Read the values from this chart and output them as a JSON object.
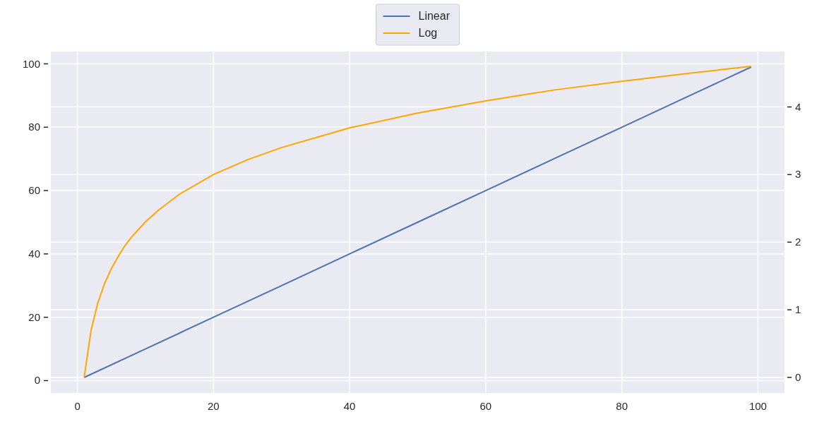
{
  "chart_data": {
    "type": "line",
    "xlim": [
      -3.9,
      103.9
    ],
    "xticks": [
      0,
      20,
      40,
      60,
      80,
      100
    ],
    "ylim": [
      -3.9,
      103.9
    ],
    "yticks": [
      0,
      20,
      40,
      60,
      80,
      100
    ],
    "y2lim": [
      -0.23,
      4.82
    ],
    "y2ticks": [
      0,
      1,
      2,
      3,
      4
    ],
    "grid": true,
    "legend": "top",
    "series": [
      {
        "name": "Linear",
        "color": "#4c72b0",
        "x": [
          1,
          10,
          20,
          30,
          40,
          50,
          60,
          70,
          80,
          90,
          99
        ],
        "values": [
          1,
          10,
          20,
          30,
          40,
          50,
          60,
          70,
          80,
          90,
          99
        ]
      },
      {
        "name": "Log",
        "color": "#ffa500",
        "axis": "y2",
        "x": [
          1,
          2,
          3,
          4,
          5,
          6,
          7,
          8,
          10,
          12,
          15,
          20,
          25,
          30,
          40,
          50,
          60,
          70,
          80,
          90,
          99
        ],
        "values": [
          0,
          0.69,
          1.1,
          1.39,
          1.61,
          1.79,
          1.95,
          2.08,
          2.3,
          2.48,
          2.71,
          3,
          3.22,
          3.4,
          3.69,
          3.91,
          4.09,
          4.25,
          4.38,
          4.5,
          4.6
        ]
      }
    ]
  }
}
